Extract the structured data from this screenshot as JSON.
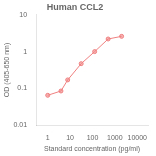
{
  "chart_data": {
    "type": "line",
    "title": "Human CCL2",
    "xlabel": "Standard concentration (pg/ml)",
    "ylabel": "OD (405-650 nm)",
    "x": [
      1,
      3.9,
      7.8,
      31.25,
      125,
      500,
      2000
    ],
    "values": [
      0.065,
      0.085,
      0.17,
      0.47,
      1.0,
      2.2,
      2.6
    ],
    "color": "#f08080",
    "marker": "circle",
    "log": true,
    "xlim": [
      0.30199517204020165,
      30199.51720402016
    ],
    "ylim": [
      0.01,
      10
    ],
    "xticks": [
      1,
      10,
      100,
      1000,
      10000
    ],
    "yticks": [
      0.01,
      0.1,
      1,
      10
    ],
    "grid": false
  }
}
